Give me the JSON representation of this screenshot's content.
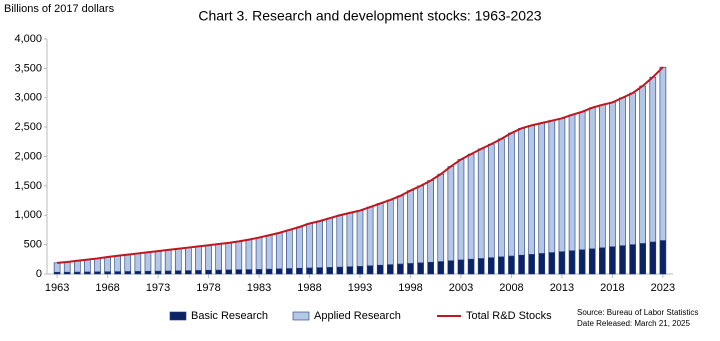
{
  "chart_data": {
    "type": "stacked-bar-line",
    "title": "Chart 3. Research and development stocks: 1963-2023",
    "y_label": "Billions of 2017 dollars",
    "source": "Source: Bureau of Labor Statistics",
    "date_released": "Date Released: March 21, 2025",
    "x": [
      1963,
      1964,
      1965,
      1966,
      1967,
      1968,
      1969,
      1970,
      1971,
      1972,
      1973,
      1974,
      1975,
      1976,
      1977,
      1978,
      1979,
      1980,
      1981,
      1982,
      1983,
      1984,
      1985,
      1986,
      1987,
      1988,
      1989,
      1990,
      1991,
      1992,
      1993,
      1994,
      1995,
      1996,
      1997,
      1998,
      1999,
      2000,
      2001,
      2002,
      2003,
      2004,
      2005,
      2006,
      2007,
      2008,
      2009,
      2010,
      2011,
      2012,
      2013,
      2014,
      2015,
      2016,
      2017,
      2018,
      2019,
      2020,
      2021,
      2022,
      2023
    ],
    "xlim": [
      1962,
      2024
    ],
    "xticks": [
      1963,
      1968,
      1973,
      1978,
      1983,
      1988,
      1993,
      1998,
      2003,
      2008,
      2013,
      2018,
      2023
    ],
    "ylim": [
      0,
      4000
    ],
    "yticks": [
      0,
      500,
      {
        "value": 1000,
        "label": "1,000"
      },
      {
        "value": 1500,
        "label": "1,500"
      },
      {
        "value": 2000,
        "label": "2,000"
      },
      {
        "value": 2500,
        "label": "2,500"
      },
      {
        "value": 3000,
        "label": "3,000"
      },
      {
        "value": 3500,
        "label": "3,500"
      },
      {
        "value": 4000,
        "label": "4,000"
      }
    ],
    "series": [
      {
        "name": "Basic Research",
        "color": "#0b2265",
        "kind": "bar",
        "values": [
          30,
          31,
          33,
          35,
          37,
          39,
          41,
          43,
          45,
          47,
          49,
          52,
          55,
          58,
          61,
          64,
          67,
          70,
          73,
          75,
          78,
          83,
          88,
          93,
          98,
          103,
          108,
          113,
          118,
          124,
          130,
          140,
          150,
          160,
          170,
          180,
          190,
          200,
          212,
          226,
          240,
          252,
          264,
          278,
          292,
          306,
          320,
          334,
          350,
          365,
          380,
          396,
          412,
          428,
          446,
          464,
          482,
          500,
          520,
          545,
          570
        ]
      },
      {
        "name": "Applied Research",
        "color": "#b4c7e7",
        "kind": "bar",
        "values": [
          160,
          174,
          192,
          210,
          228,
          251,
          269,
          287,
          305,
          323,
          341,
          358,
          375,
          392,
          409,
          426,
          443,
          460,
          482,
          510,
          542,
          577,
          612,
          657,
          702,
          757,
          792,
          837,
          882,
          916,
          950,
          1000,
          1050,
          1100,
          1160,
          1240,
          1310,
          1390,
          1488,
          1604,
          1710,
          1788,
          1866,
          1932,
          2008,
          2094,
          2160,
          2196,
          2220,
          2245,
          2270,
          2314,
          2348,
          2402,
          2434,
          2456,
          2518,
          2580,
          2680,
          2805,
          2950
        ]
      },
      {
        "name": "Total R&D Stocks",
        "color": "#c0161f",
        "kind": "line",
        "values": [
          190,
          205,
          225,
          245,
          265,
          290,
          310,
          330,
          350,
          370,
          390,
          410,
          430,
          450,
          470,
          490,
          510,
          530,
          555,
          585,
          620,
          660,
          700,
          750,
          800,
          860,
          900,
          950,
          1000,
          1040,
          1080,
          1140,
          1200,
          1260,
          1330,
          1420,
          1500,
          1590,
          1700,
          1830,
          1950,
          2040,
          2130,
          2210,
          2300,
          2400,
          2480,
          2530,
          2570,
          2610,
          2650,
          2710,
          2760,
          2830,
          2880,
          2920,
          3000,
          3080,
          3200,
          3350,
          3520
        ]
      }
    ]
  }
}
